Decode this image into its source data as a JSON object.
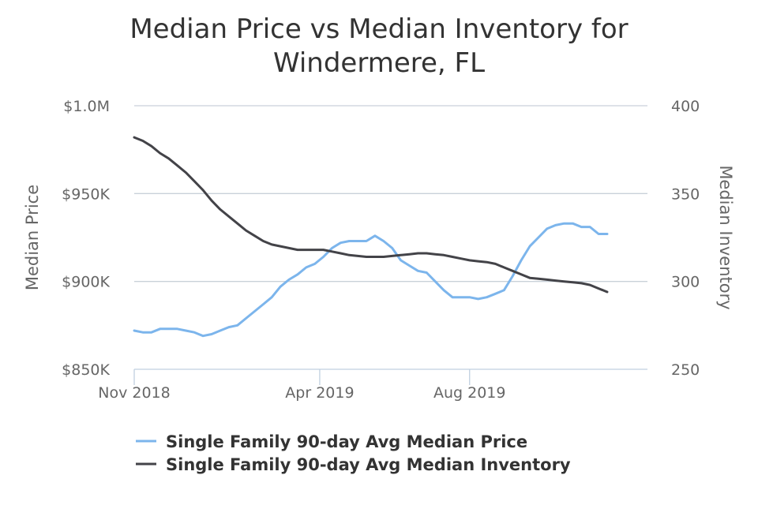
{
  "chart_data": {
    "type": "line",
    "title": "Median Price vs Median Inventory for Windermere, FL",
    "title_lines": [
      "Median Price vs Median Inventory for",
      "Windermere, FL"
    ],
    "x_start": "2018-11-01",
    "x_ticks": [
      {
        "date": "2018-11-01",
        "label": "Nov 2018"
      },
      {
        "date": "2019-04-01",
        "label": "Apr 2019"
      },
      {
        "date": "2019-08-01",
        "label": "Aug 2019"
      }
    ],
    "y_left": {
      "label": "Median Price",
      "range": [
        850000,
        1000000
      ],
      "ticks": [
        {
          "value": 1000000,
          "label": "$1.0M"
        },
        {
          "value": 950000,
          "label": "$950K"
        },
        {
          "value": 900000,
          "label": "$900K"
        },
        {
          "value": 850000,
          "label": "$850K"
        }
      ]
    },
    "y_right": {
      "label": "Median Inventory",
      "range": [
        250,
        400
      ],
      "ticks": [
        {
          "value": 400,
          "label": "400"
        },
        {
          "value": 350,
          "label": "350"
        },
        {
          "value": 300,
          "label": "300"
        },
        {
          "value": 250,
          "label": "250"
        }
      ]
    },
    "grid": true,
    "legend_position": "bottom",
    "series": [
      {
        "name": "Single Family 90-day Avg Median Price",
        "axis": "left",
        "color": "#7cb5ec",
        "points": [
          [
            "2018-11-01",
            872000
          ],
          [
            "2018-11-08",
            871000
          ],
          [
            "2018-11-15",
            871000
          ],
          [
            "2018-11-22",
            873000
          ],
          [
            "2018-11-29",
            873000
          ],
          [
            "2018-12-06",
            873000
          ],
          [
            "2018-12-13",
            872000
          ],
          [
            "2018-12-20",
            871000
          ],
          [
            "2018-12-27",
            869000
          ],
          [
            "2019-01-03",
            870000
          ],
          [
            "2019-01-10",
            872000
          ],
          [
            "2019-01-17",
            874000
          ],
          [
            "2019-01-24",
            875000
          ],
          [
            "2019-01-31",
            879000
          ],
          [
            "2019-02-07",
            883000
          ],
          [
            "2019-02-14",
            887000
          ],
          [
            "2019-02-21",
            891000
          ],
          [
            "2019-02-28",
            897000
          ],
          [
            "2019-03-07",
            901000
          ],
          [
            "2019-03-14",
            904000
          ],
          [
            "2019-03-21",
            908000
          ],
          [
            "2019-03-28",
            910000
          ],
          [
            "2019-04-04",
            914000
          ],
          [
            "2019-04-11",
            919000
          ],
          [
            "2019-04-18",
            922000
          ],
          [
            "2019-04-25",
            923000
          ],
          [
            "2019-05-02",
            923000
          ],
          [
            "2019-05-09",
            923000
          ],
          [
            "2019-05-16",
            926000
          ],
          [
            "2019-05-23",
            923000
          ],
          [
            "2019-05-30",
            919000
          ],
          [
            "2019-06-06",
            912000
          ],
          [
            "2019-06-13",
            909000
          ],
          [
            "2019-06-20",
            906000
          ],
          [
            "2019-06-27",
            905000
          ],
          [
            "2019-07-04",
            900000
          ],
          [
            "2019-07-11",
            895000
          ],
          [
            "2019-07-18",
            891000
          ],
          [
            "2019-07-25",
            891000
          ],
          [
            "2019-08-01",
            891000
          ],
          [
            "2019-08-08",
            890000
          ],
          [
            "2019-08-15",
            891000
          ],
          [
            "2019-08-22",
            893000
          ],
          [
            "2019-08-29",
            895000
          ],
          [
            "2019-09-05",
            903000
          ],
          [
            "2019-09-12",
            912000
          ],
          [
            "2019-09-19",
            920000
          ],
          [
            "2019-09-26",
            925000
          ],
          [
            "2019-10-03",
            930000
          ],
          [
            "2019-10-10",
            932000
          ],
          [
            "2019-10-17",
            933000
          ],
          [
            "2019-10-24",
            933000
          ],
          [
            "2019-10-31",
            931000
          ],
          [
            "2019-11-07",
            931000
          ],
          [
            "2019-11-14",
            927000
          ],
          [
            "2019-11-21",
            927000
          ]
        ]
      },
      {
        "name": "Single Family 90-day Avg Median Inventory",
        "axis": "right",
        "color": "#434348",
        "points": [
          [
            "2018-11-01",
            382
          ],
          [
            "2018-11-08",
            380
          ],
          [
            "2018-11-15",
            377
          ],
          [
            "2018-11-22",
            373
          ],
          [
            "2018-11-29",
            370
          ],
          [
            "2018-12-06",
            366
          ],
          [
            "2018-12-13",
            362
          ],
          [
            "2018-12-20",
            357
          ],
          [
            "2018-12-27",
            352
          ],
          [
            "2019-01-03",
            346
          ],
          [
            "2019-01-10",
            341
          ],
          [
            "2019-01-17",
            337
          ],
          [
            "2019-01-24",
            333
          ],
          [
            "2019-01-31",
            329
          ],
          [
            "2019-02-07",
            326
          ],
          [
            "2019-02-14",
            323
          ],
          [
            "2019-02-21",
            321
          ],
          [
            "2019-02-28",
            320
          ],
          [
            "2019-03-07",
            319
          ],
          [
            "2019-03-14",
            318
          ],
          [
            "2019-03-21",
            318
          ],
          [
            "2019-03-28",
            318
          ],
          [
            "2019-04-04",
            318
          ],
          [
            "2019-04-11",
            317
          ],
          [
            "2019-04-18",
            316
          ],
          [
            "2019-04-25",
            315
          ],
          [
            "2019-05-02",
            314.5
          ],
          [
            "2019-05-09",
            314
          ],
          [
            "2019-05-16",
            314
          ],
          [
            "2019-05-23",
            314
          ],
          [
            "2019-05-30",
            314.5
          ],
          [
            "2019-06-06",
            315
          ],
          [
            "2019-06-13",
            315.5
          ],
          [
            "2019-06-20",
            316
          ],
          [
            "2019-06-27",
            316
          ],
          [
            "2019-07-04",
            315.5
          ],
          [
            "2019-07-11",
            315
          ],
          [
            "2019-07-18",
            314
          ],
          [
            "2019-07-25",
            313
          ],
          [
            "2019-08-01",
            312
          ],
          [
            "2019-08-08",
            311.5
          ],
          [
            "2019-08-15",
            311
          ],
          [
            "2019-08-22",
            310
          ],
          [
            "2019-08-29",
            308
          ],
          [
            "2019-09-05",
            306
          ],
          [
            "2019-09-12",
            304
          ],
          [
            "2019-09-19",
            302
          ],
          [
            "2019-09-26",
            301.5
          ],
          [
            "2019-10-03",
            301
          ],
          [
            "2019-10-10",
            300.5
          ],
          [
            "2019-10-17",
            300
          ],
          [
            "2019-10-24",
            299.5
          ],
          [
            "2019-10-31",
            299
          ],
          [
            "2019-11-07",
            298
          ],
          [
            "2019-11-14",
            296
          ],
          [
            "2019-11-21",
            294
          ]
        ]
      }
    ]
  }
}
